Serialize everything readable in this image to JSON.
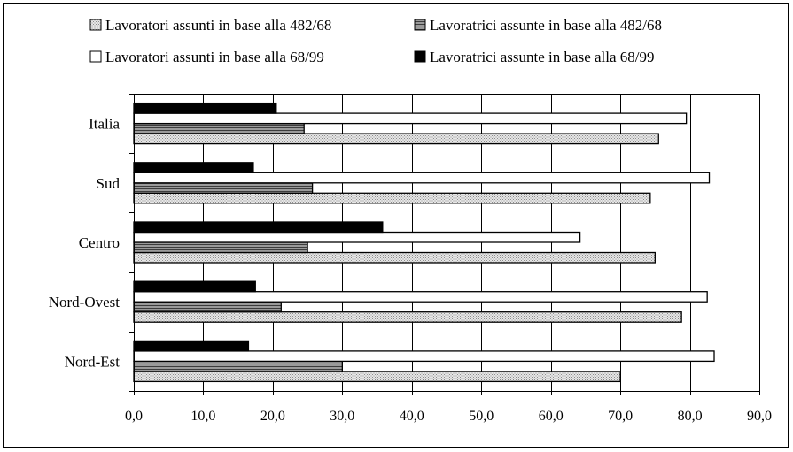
{
  "chart_data": {
    "type": "bar",
    "orientation": "horizontal",
    "categories": [
      "Nord-Est",
      "Nord-Ovest",
      "Centro",
      "Sud",
      "Italia"
    ],
    "series": [
      {
        "name": "Lavoratori assunti in base alla 482/68",
        "values": [
          70.0,
          78.8,
          75.0,
          74.3,
          75.5
        ],
        "color": "#d9d9d9",
        "pattern": "dotted"
      },
      {
        "name": "Lavoratrici assunte in base alla 482/68",
        "values": [
          30.0,
          21.2,
          25.0,
          25.7,
          24.5
        ],
        "color": "#808080",
        "pattern": "horizontal-lines"
      },
      {
        "name": "Lavoratori assunti in base alla 68/99",
        "values": [
          83.5,
          82.5,
          64.2,
          82.8,
          79.5
        ],
        "color": "#ffffff",
        "pattern": "none"
      },
      {
        "name": "Lavoratrici assunte in base alla 68/99",
        "values": [
          16.5,
          17.5,
          35.8,
          17.2,
          20.5
        ],
        "color": "#000000",
        "pattern": "none"
      }
    ],
    "xlim": [
      0,
      90
    ],
    "xticks": [
      "0,0",
      "10,0",
      "20,0",
      "30,0",
      "40,0",
      "50,0",
      "60,0",
      "70,0",
      "80,0",
      "90,0"
    ],
    "grid": "vertical",
    "legend": "top"
  }
}
